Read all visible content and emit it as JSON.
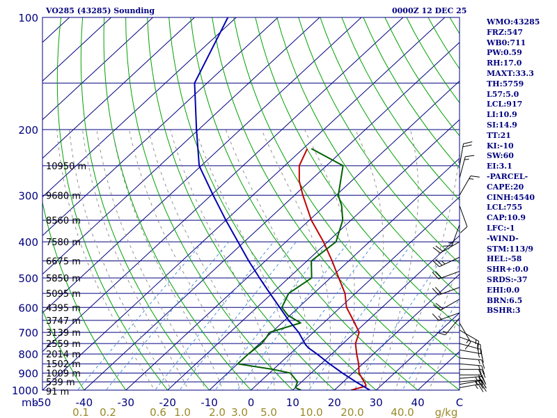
{
  "header": {
    "station_title": "VO285 (43285) Sounding",
    "valid_time": "0000Z 12 DEC 25"
  },
  "indices": [
    "WMO:43285",
    "FRZ:547",
    "WB0:711",
    "PW:0.59",
    "RH:17.0",
    "MAXT:33.3",
    "TH:5759",
    "L57:5.0",
    "LCL:917",
    "LI:10.9",
    "SI:14.9",
    "TT:21",
    "KI:-10",
    "SW:60",
    "EI:3.1",
    "-PARCEL-",
    "CAPE:20",
    "CINH:4540",
    "LCL:755",
    "CAP:10.9",
    "LFC:-1",
    "-WIND-",
    "STM:113/9",
    "HEL:-58",
    "SHR+:0.0",
    "SRDS:-37",
    "EHI:0.0",
    "BRN:6.5",
    "BSHR:3"
  ],
  "colors": {
    "frame": "#000080",
    "isobar": "#000080",
    "isotherm": "#000080",
    "dry_adiabat": "#00a000",
    "moist_adiabat": "#909090",
    "mixing_ratio": "#4a90d8",
    "temperature": "#c00000",
    "dewpoint": "#006000",
    "parcel": "#0000b0",
    "wind_barb": "#000000",
    "mixing_ratio_label": "#9a8a28"
  },
  "chart_data": {
    "type": "line",
    "diagram": "skew-T log-P",
    "pressure_axis_label": "mb",
    "pressure_ticks": [
      100,
      200,
      300,
      400,
      500,
      600,
      700,
      800,
      900,
      1000
    ],
    "temperature_ticks": [
      "-50",
      "-40",
      "-30",
      "-20",
      "-10",
      "0",
      "10",
      "20",
      "30",
      "40",
      "C"
    ],
    "temperature_range": [
      -50,
      50
    ],
    "mixing_ratio_labels": [
      "0.1",
      "0.2",
      "0.6",
      "1.0",
      "2.0",
      "3.0",
      "5.0",
      "10.0",
      "20.0",
      "40.0",
      "g/kg"
    ],
    "height_labels": [
      {
        "p": 1006,
        "label": "91 m"
      },
      {
        "p": 950,
        "label": "539 m"
      },
      {
        "p": 900,
        "label": "1009 m"
      },
      {
        "p": 850,
        "label": "1502 m"
      },
      {
        "p": 800,
        "label": "2014 m"
      },
      {
        "p": 750,
        "label": "2559 m"
      },
      {
        "p": 700,
        "label": "3139 m"
      },
      {
        "p": 650,
        "label": "3747 m"
      },
      {
        "p": 600,
        "label": "4395 m"
      },
      {
        "p": 550,
        "label": "5095 m"
      },
      {
        "p": 500,
        "label": "5850 m"
      },
      {
        "p": 450,
        "label": "6675 m"
      },
      {
        "p": 400,
        "label": "7580 m"
      },
      {
        "p": 350,
        "label": "8560 m"
      },
      {
        "p": 300,
        "label": "9680 m"
      },
      {
        "p": 250,
        "label": "10950 m"
      }
    ],
    "series": [
      {
        "key": "temperature",
        "points": [
          [
            1000,
            24.0
          ],
          [
            990,
            25.0
          ],
          [
            975,
            26.5
          ],
          [
            965,
            26.0
          ],
          [
            950,
            25.0
          ],
          [
            900,
            21.5
          ],
          [
            850,
            19.0
          ],
          [
            800,
            16.0
          ],
          [
            750,
            13.0
          ],
          [
            700,
            11.0
          ],
          [
            650,
            6.5
          ],
          [
            600,
            1.5
          ],
          [
            550,
            -2.5
          ],
          [
            500,
            -8.0
          ],
          [
            450,
            -14.0
          ],
          [
            400,
            -21.0
          ],
          [
            350,
            -29.5
          ],
          [
            300,
            -38.0
          ],
          [
            275,
            -42.5
          ],
          [
            250,
            -46.5
          ],
          [
            225,
            -49.0
          ]
        ]
      },
      {
        "key": "dewpoint",
        "points": [
          [
            1000,
            12.0
          ],
          [
            985,
            10.0
          ],
          [
            950,
            9.0
          ],
          [
            900,
            5.0
          ],
          [
            880,
            0.0
          ],
          [
            850,
            -10.0
          ],
          [
            800,
            -10.0
          ],
          [
            750,
            -9.5
          ],
          [
            720,
            -10.0
          ],
          [
            700,
            -10.5
          ],
          [
            660,
            -5.5
          ],
          [
            630,
            -10.5
          ],
          [
            600,
            -14.0
          ],
          [
            550,
            -16.0
          ],
          [
            500,
            -14.5
          ],
          [
            450,
            -19.0
          ],
          [
            400,
            -18.0
          ],
          [
            350,
            -22.0
          ],
          [
            320,
            -26.0
          ],
          [
            300,
            -29.5
          ],
          [
            250,
            -36.0
          ],
          [
            225,
            -48.0
          ]
        ]
      },
      {
        "key": "parcel",
        "points": [
          [
            1000,
            28.5
          ],
          [
            950,
            23.0
          ],
          [
            900,
            17.5
          ],
          [
            850,
            12.0
          ],
          [
            800,
            6.5
          ],
          [
            770,
            2.8
          ],
          [
            755,
            1.3
          ],
          [
            700,
            -3.5
          ],
          [
            650,
            -9.0
          ],
          [
            600,
            -14.5
          ],
          [
            550,
            -20.5
          ],
          [
            500,
            -27.0
          ],
          [
            450,
            -34.0
          ],
          [
            400,
            -41.5
          ],
          [
            350,
            -50.0
          ],
          [
            300,
            -59.5
          ],
          [
            250,
            -70.5
          ],
          [
            200,
            -80.5
          ],
          [
            150,
            -93.0
          ],
          [
            100,
            -102.0
          ]
        ]
      }
    ],
    "wind_barbs": [
      {
        "p": 985,
        "dir": 80,
        "kt": 25
      },
      {
        "p": 965,
        "dir": 80,
        "kt": 25
      },
      {
        "p": 950,
        "dir": 85,
        "kt": 25
      },
      {
        "p": 930,
        "dir": 85,
        "kt": 25
      },
      {
        "p": 910,
        "dir": 90,
        "kt": 20
      },
      {
        "p": 880,
        "dir": 90,
        "kt": 20
      },
      {
        "p": 850,
        "dir": 95,
        "kt": 20
      },
      {
        "p": 820,
        "dir": 95,
        "kt": 15
      },
      {
        "p": 780,
        "dir": 100,
        "kt": 15
      },
      {
        "p": 750,
        "dir": 105,
        "kt": 15
      },
      {
        "p": 720,
        "dir": 110,
        "kt": 15
      },
      {
        "p": 690,
        "dir": 120,
        "kt": 15
      },
      {
        "p": 660,
        "dir": 150,
        "kt": 15
      },
      {
        "p": 640,
        "dir": 220,
        "kt": 15
      },
      {
        "p": 620,
        "dir": 250,
        "kt": 15
      },
      {
        "p": 570,
        "dir": 240,
        "kt": 20
      },
      {
        "p": 530,
        "dir": 250,
        "kt": 20
      },
      {
        "p": 480,
        "dir": 250,
        "kt": 20
      },
      {
        "p": 440,
        "dir": 245,
        "kt": 25
      },
      {
        "p": 400,
        "dir": 240,
        "kt": 20
      },
      {
        "p": 360,
        "dir": 200,
        "kt": 15
      },
      {
        "p": 320,
        "dir": 160,
        "kt": 10
      },
      {
        "p": 300,
        "dir": 30,
        "kt": 15
      },
      {
        "p": 270,
        "dir": 15,
        "kt": 15
      },
      {
        "p": 250,
        "dir": 10,
        "kt": 20
      }
    ]
  }
}
